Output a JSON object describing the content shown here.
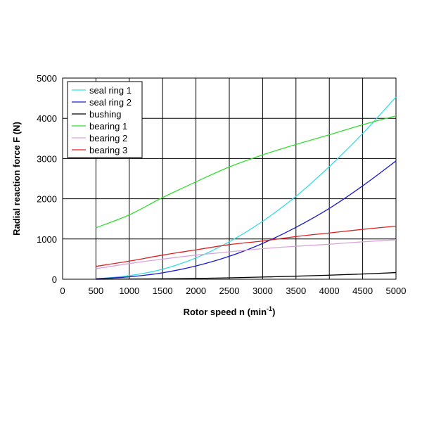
{
  "chart_data": {
    "type": "line",
    "title": "",
    "xlabel": "Rotor speed n (min",
    "xlabel_sup": "-1",
    "xlabel_end": ")",
    "ylabel": "Radial reaction force F (N)",
    "xlim": [
      0,
      5000
    ],
    "ylim": [
      0,
      5000
    ],
    "x_ticks": [
      "0",
      "500",
      "1000",
      "1500",
      "2000",
      "2500",
      "3000",
      "3500",
      "4000",
      "4500",
      "5000"
    ],
    "y_ticks": [
      "0",
      "1000",
      "2000",
      "3000",
      "4000",
      "5000"
    ],
    "grid": true,
    "legend_position": "top-left",
    "x": [
      500,
      1000,
      1500,
      2000,
      2500,
      3000,
      3500,
      4000,
      4500,
      5000
    ],
    "series": [
      {
        "name": "seal ring 1",
        "color": "#33dde8",
        "values": [
          10,
          90,
          250,
          530,
          930,
          1440,
          2060,
          2800,
          3620,
          4530
        ]
      },
      {
        "name": "seal ring 2",
        "color": "#1a1acc",
        "values": [
          10,
          60,
          160,
          330,
          570,
          890,
          1290,
          1760,
          2320,
          2940
        ]
      },
      {
        "name": "bushing",
        "color": "#000000",
        "values": [
          0,
          5,
          10,
          20,
          35,
          55,
          75,
          100,
          130,
          165
        ]
      },
      {
        "name": "bearing 1",
        "color": "#33dd33",
        "values": [
          1280,
          1600,
          2030,
          2420,
          2790,
          3090,
          3350,
          3590,
          3840,
          4060
        ]
      },
      {
        "name": "bearing 2",
        "color": "#d9a3d9",
        "values": [
          260,
          390,
          500,
          600,
          680,
          760,
          820,
          870,
          930,
          980
        ]
      },
      {
        "name": "bearing 3",
        "color": "#e02020",
        "values": [
          320,
          450,
          600,
          730,
          860,
          950,
          1060,
          1150,
          1240,
          1320
        ]
      }
    ]
  }
}
